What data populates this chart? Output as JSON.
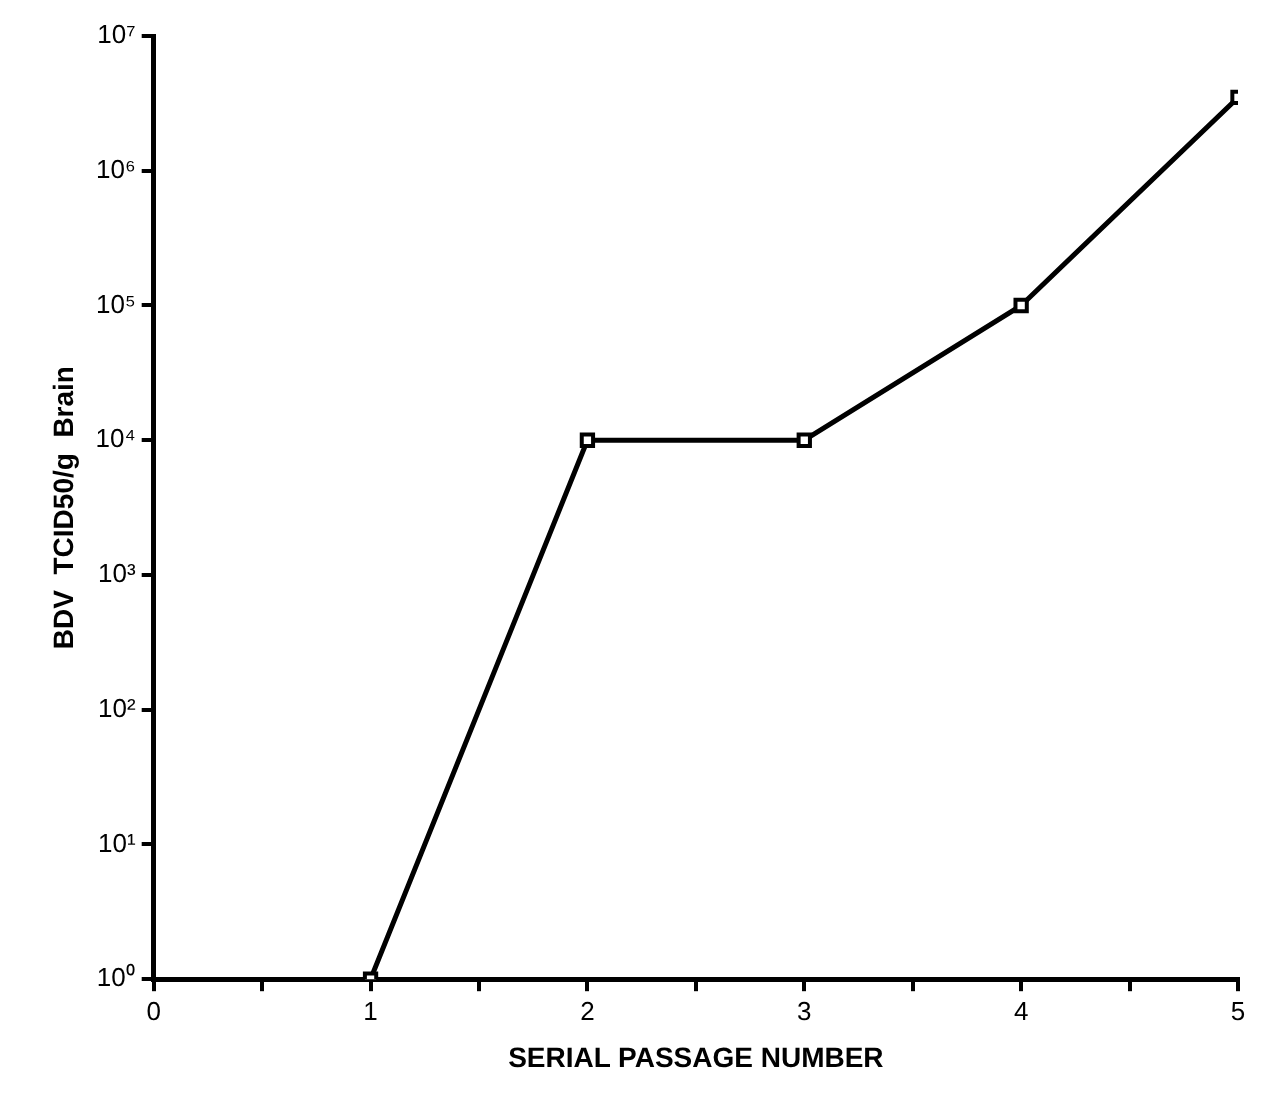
{
  "chart_data": {
    "type": "line",
    "xlabel": "SERIAL PASSAGE NUMBER",
    "ylabel": "BDV  TCID50/g  Brain",
    "x": [
      1,
      2,
      3,
      4,
      5
    ],
    "series": [
      {
        "color": "#000000",
        "values": [
          1,
          10000,
          10000,
          100000,
          3500000
        ]
      }
    ],
    "log": "y",
    "xlim": [
      0,
      5
    ],
    "xticks": [
      0,
      {
        "value": 0.5,
        "label": null
      },
      1,
      {
        "value": 1.5,
        "label": null
      },
      2,
      {
        "value": 2.5,
        "label": null
      },
      3,
      {
        "value": 3.5,
        "label": null
      },
      4,
      {
        "value": 4.5,
        "label": null
      },
      5
    ],
    "ylim": [
      1,
      10000000
    ],
    "yticks": [
      {
        "value": 1,
        "label": "10⁰"
      },
      {
        "value": 10,
        "label": "10¹"
      },
      {
        "value": 100,
        "label": "10²"
      },
      {
        "value": 1000,
        "label": "10³"
      },
      {
        "value": 10000,
        "label": "10⁴"
      },
      {
        "value": 100000,
        "label": "10⁵"
      },
      {
        "value": 1000000,
        "label": "10⁶"
      },
      {
        "value": 10000000,
        "label": "10⁷"
      }
    ],
    "grid": false,
    "legend": false,
    "marker": "square",
    "line_style": "solid"
  }
}
